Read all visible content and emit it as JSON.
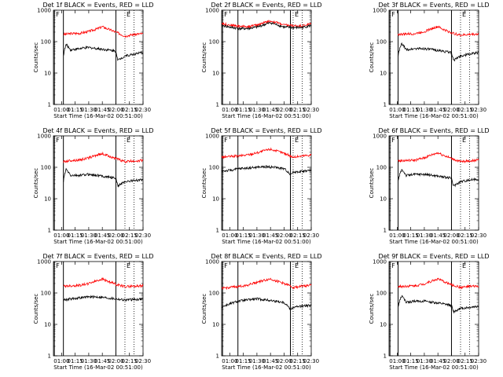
{
  "figure": {
    "x_unit_note": "x values are minutes after 01:00 on 16-Mar-02"
  },
  "chart_data": [
    {
      "type": "line",
      "title": "Det 1f BLACK = Events, RED = LLD",
      "xlabel": "Start Time (16-Mar-02 00:51:00)",
      "ylabel": "Counts/sec",
      "y_scale": "log",
      "ylim": [
        1,
        1000
      ],
      "xlim": [
        -9,
        90
      ],
      "x_tick_labels": [
        "01:00",
        "01:15",
        "01:30",
        "01:45",
        "02:00",
        "02:15",
        "02:30"
      ],
      "y_tick_labels": [
        "1",
        "10",
        "100",
        "1000"
      ],
      "markers": [
        {
          "label": "F",
          "x": -8,
          "style": "solid"
        },
        {
          "label": "",
          "x": 2,
          "style": "solid"
        },
        {
          "label": "",
          "x": 60,
          "style": "solid"
        },
        {
          "label": "E",
          "x": 70,
          "style": "dotted"
        },
        {
          "label": "",
          "x": 80,
          "style": "dotted"
        }
      ],
      "series": [
        {
          "color": "#ff0000",
          "x": [
            2,
            10,
            20,
            30,
            40,
            45,
            50,
            60,
            70,
            80,
            90
          ],
          "y": [
            170,
            180,
            185,
            210,
            260,
            300,
            260,
            200,
            150,
            170,
            180
          ]
        },
        {
          "color": "#000000",
          "x": [
            2,
            5,
            10,
            20,
            30,
            40,
            50,
            60,
            62,
            70,
            80,
            90
          ],
          "y": [
            35,
            80,
            55,
            60,
            65,
            60,
            55,
            50,
            25,
            35,
            40,
            45
          ]
        }
      ]
    },
    {
      "type": "line",
      "title": "Det 2f BLACK = Events, RED = LLD",
      "xlabel": "Start Time (16-Mar-02 00:51:00)",
      "ylabel": "Counts/sec",
      "y_scale": "log",
      "ylim": [
        1,
        1000
      ],
      "xlim": [
        -9,
        90
      ],
      "x_tick_labels": [
        "01:00",
        "01:15",
        "01:30",
        "01:45",
        "02:00",
        "02:15",
        "02:30"
      ],
      "y_tick_labels": [
        "1",
        "10",
        "100",
        "1000"
      ],
      "markers": [
        {
          "label": "F",
          "x": -8,
          "style": "solid"
        },
        {
          "label": "",
          "x": 9,
          "style": "solid"
        },
        {
          "label": "",
          "x": 67,
          "style": "solid"
        },
        {
          "label": "E",
          "x": 70,
          "style": "dotted"
        },
        {
          "label": "",
          "x": 80,
          "style": "dotted"
        }
      ],
      "series": [
        {
          "color": "#ff0000",
          "x": [
            -9,
            0,
            10,
            20,
            30,
            40,
            45,
            50,
            60,
            70,
            80,
            90
          ],
          "y": [
            380,
            340,
            310,
            300,
            340,
            420,
            450,
            420,
            340,
            320,
            320,
            370
          ]
        },
        {
          "color": "#000000",
          "x": [
            -9,
            0,
            10,
            20,
            30,
            40,
            45,
            50,
            60,
            70,
            80,
            90
          ],
          "y": [
            330,
            290,
            260,
            260,
            290,
            360,
            400,
            360,
            290,
            280,
            280,
            330
          ]
        }
      ]
    },
    {
      "type": "line",
      "title": "Det 3f BLACK = Events, RED = LLD",
      "xlabel": "Start Time (16-Mar-02 00:51:00)",
      "ylabel": "Counts/sec",
      "y_scale": "log",
      "ylim": [
        1,
        1000
      ],
      "xlim": [
        -9,
        90
      ],
      "x_tick_labels": [
        "01:00",
        "01:15",
        "01:30",
        "01:45",
        "02:00",
        "02:15",
        "02:30"
      ],
      "y_tick_labels": [
        "1",
        "10",
        "100",
        "1000"
      ],
      "markers": [
        {
          "label": "F",
          "x": -8,
          "style": "solid"
        },
        {
          "label": "",
          "x": 1,
          "style": "solid"
        },
        {
          "label": "",
          "x": 60,
          "style": "solid"
        },
        {
          "label": "E",
          "x": 70,
          "style": "dotted"
        },
        {
          "label": "",
          "x": 80,
          "style": "dotted"
        }
      ],
      "series": [
        {
          "color": "#ff0000",
          "x": [
            1,
            10,
            20,
            30,
            40,
            45,
            50,
            60,
            70,
            80,
            90
          ],
          "y": [
            170,
            175,
            180,
            210,
            270,
            300,
            250,
            190,
            160,
            170,
            175
          ]
        },
        {
          "color": "#000000",
          "x": [
            1,
            5,
            10,
            20,
            30,
            40,
            50,
            60,
            62,
            70,
            80,
            90
          ],
          "y": [
            35,
            85,
            55,
            60,
            60,
            55,
            50,
            45,
            25,
            35,
            40,
            45
          ]
        }
      ]
    },
    {
      "type": "line",
      "title": "Det 4f BLACK = Events, RED = LLD",
      "xlabel": "Start Time (16-Mar-02 00:51:00)",
      "ylabel": "Counts/sec",
      "y_scale": "log",
      "ylim": [
        1,
        1000
      ],
      "xlim": [
        -9,
        90
      ],
      "x_tick_labels": [
        "01:00",
        "01:15",
        "01:30",
        "01:45",
        "02:00",
        "02:15",
        "02:30"
      ],
      "y_tick_labels": [
        "1",
        "10",
        "100",
        "1000"
      ],
      "markers": [
        {
          "label": "F",
          "x": -8,
          "style": "solid"
        },
        {
          "label": "",
          "x": 2,
          "style": "solid"
        },
        {
          "label": "",
          "x": 60,
          "style": "solid"
        },
        {
          "label": "E",
          "x": 70,
          "style": "dotted"
        },
        {
          "label": "",
          "x": 80,
          "style": "dotted"
        }
      ],
      "series": [
        {
          "color": "#ff0000",
          "x": [
            2,
            10,
            20,
            30,
            40,
            45,
            50,
            60,
            70,
            80,
            90
          ],
          "y": [
            150,
            165,
            170,
            200,
            250,
            270,
            240,
            190,
            150,
            160,
            165
          ]
        },
        {
          "color": "#000000",
          "x": [
            2,
            5,
            10,
            20,
            30,
            40,
            50,
            60,
            62,
            70,
            80,
            90
          ],
          "y": [
            35,
            85,
            55,
            55,
            60,
            55,
            50,
            45,
            25,
            35,
            38,
            40
          ]
        }
      ]
    },
    {
      "type": "line",
      "title": "Det 5f BLACK = Events, RED = LLD",
      "xlabel": "Start Time (16-Mar-02 00:51:00)",
      "ylabel": "Counts/sec",
      "y_scale": "log",
      "ylim": [
        1,
        1000
      ],
      "xlim": [
        -9,
        90
      ],
      "x_tick_labels": [
        "01:00",
        "01:15",
        "01:30",
        "01:45",
        "02:00",
        "02:15",
        "02:30"
      ],
      "y_tick_labels": [
        "1",
        "10",
        "100",
        "1000"
      ],
      "markers": [
        {
          "label": "F",
          "x": -8,
          "style": "solid"
        },
        {
          "label": "",
          "x": 9,
          "style": "solid"
        },
        {
          "label": "",
          "x": 67,
          "style": "solid"
        },
        {
          "label": "E",
          "x": 70,
          "style": "dotted"
        },
        {
          "label": "",
          "x": 80,
          "style": "dotted"
        }
      ],
      "series": [
        {
          "color": "#ff0000",
          "x": [
            -9,
            0,
            10,
            20,
            30,
            40,
            45,
            50,
            60,
            70,
            80,
            90
          ],
          "y": [
            210,
            220,
            230,
            250,
            290,
            350,
            380,
            340,
            280,
            210,
            230,
            250
          ]
        },
        {
          "color": "#000000",
          "x": [
            -9,
            0,
            10,
            20,
            30,
            40,
            50,
            60,
            67,
            70,
            80,
            90
          ],
          "y": [
            75,
            80,
            90,
            95,
            100,
            105,
            100,
            90,
            60,
            70,
            75,
            80
          ]
        }
      ]
    },
    {
      "type": "line",
      "title": "Det 6f BLACK = Events, RED = LLD",
      "xlabel": "Start Time (16-Mar-02 00:51:00)",
      "ylabel": "Counts/sec",
      "y_scale": "log",
      "ylim": [
        1,
        1000
      ],
      "xlim": [
        -9,
        90
      ],
      "x_tick_labels": [
        "01:00",
        "01:15",
        "01:30",
        "01:45",
        "02:00",
        "02:15",
        "02:30"
      ],
      "y_tick_labels": [
        "1",
        "10",
        "100",
        "1000"
      ],
      "markers": [
        {
          "label": "F",
          "x": -8,
          "style": "solid"
        },
        {
          "label": "",
          "x": 1,
          "style": "solid"
        },
        {
          "label": "",
          "x": 60,
          "style": "solid"
        },
        {
          "label": "E",
          "x": 70,
          "style": "dotted"
        },
        {
          "label": "",
          "x": 80,
          "style": "dotted"
        }
      ],
      "series": [
        {
          "color": "#ff0000",
          "x": [
            1,
            10,
            20,
            30,
            40,
            45,
            50,
            60,
            70,
            80,
            90
          ],
          "y": [
            160,
            165,
            170,
            200,
            260,
            290,
            250,
            190,
            150,
            160,
            170
          ]
        },
        {
          "color": "#000000",
          "x": [
            1,
            5,
            10,
            20,
            30,
            40,
            50,
            60,
            62,
            70,
            80,
            90
          ],
          "y": [
            35,
            85,
            55,
            60,
            60,
            55,
            50,
            45,
            25,
            35,
            40,
            42
          ]
        }
      ]
    },
    {
      "type": "line",
      "title": "Det 7f BLACK = Events, RED = LLD",
      "xlabel": "Start Time (16-Mar-02 00:51:00)",
      "ylabel": "Counts/sec",
      "y_scale": "log",
      "ylim": [
        1,
        1000
      ],
      "xlim": [
        -9,
        90
      ],
      "x_tick_labels": [
        "01:00",
        "01:15",
        "01:30",
        "01:45",
        "02:00",
        "02:15",
        "02:30"
      ],
      "y_tick_labels": [
        "1",
        "10",
        "100",
        "1000"
      ],
      "markers": [
        {
          "label": "F",
          "x": -8,
          "style": "solid"
        },
        {
          "label": "",
          "x": 2,
          "style": "solid"
        },
        {
          "label": "",
          "x": 60,
          "style": "solid"
        },
        {
          "label": "E",
          "x": 70,
          "style": "dotted"
        },
        {
          "label": "",
          "x": 80,
          "style": "dotted"
        }
      ],
      "series": [
        {
          "color": "#ff0000",
          "x": [
            2,
            10,
            20,
            30,
            40,
            45,
            50,
            60,
            70,
            80,
            90
          ],
          "y": [
            165,
            170,
            175,
            200,
            250,
            280,
            240,
            190,
            160,
            165,
            170
          ]
        },
        {
          "color": "#000000",
          "x": [
            2,
            10,
            20,
            30,
            40,
            50,
            60,
            70,
            80,
            90
          ],
          "y": [
            60,
            65,
            70,
            75,
            75,
            70,
            65,
            60,
            62,
            65
          ]
        }
      ]
    },
    {
      "type": "line",
      "title": "Det 8f BLACK = Events, RED = LLD",
      "xlabel": "Start Time (16-Mar-02 00:51:00)",
      "ylabel": "Counts/sec",
      "y_scale": "log",
      "ylim": [
        1,
        1000
      ],
      "xlim": [
        -9,
        90
      ],
      "x_tick_labels": [
        "01:00",
        "01:15",
        "01:30",
        "01:45",
        "02:00",
        "02:15",
        "02:30"
      ],
      "y_tick_labels": [
        "1",
        "10",
        "100",
        "1000"
      ],
      "markers": [
        {
          "label": "F",
          "x": -8,
          "style": "solid"
        },
        {
          "label": "",
          "x": 9,
          "style": "solid"
        },
        {
          "label": "",
          "x": 67,
          "style": "solid"
        },
        {
          "label": "E",
          "x": 70,
          "style": "dotted"
        },
        {
          "label": "",
          "x": 80,
          "style": "dotted"
        }
      ],
      "series": [
        {
          "color": "#ff0000",
          "x": [
            -9,
            0,
            10,
            20,
            30,
            40,
            45,
            50,
            60,
            70,
            80,
            90
          ],
          "y": [
            140,
            150,
            160,
            180,
            220,
            260,
            280,
            250,
            200,
            150,
            165,
            175
          ]
        },
        {
          "color": "#000000",
          "x": [
            -9,
            0,
            10,
            20,
            30,
            40,
            50,
            60,
            67,
            70,
            80,
            90
          ],
          "y": [
            35,
            45,
            55,
            60,
            65,
            60,
            55,
            50,
            30,
            35,
            38,
            40
          ]
        }
      ]
    },
    {
      "type": "line",
      "title": "Det 9f BLACK = Events, RED = LLD",
      "xlabel": "Start Time (16-Mar-02 00:51:00)",
      "ylabel": "Counts/sec",
      "y_scale": "log",
      "ylim": [
        1,
        1000
      ],
      "xlim": [
        -9,
        90
      ],
      "x_tick_labels": [
        "01:00",
        "01:15",
        "01:30",
        "01:45",
        "02:00",
        "02:15",
        "02:30"
      ],
      "y_tick_labels": [
        "1",
        "10",
        "100",
        "1000"
      ],
      "markers": [
        {
          "label": "F",
          "x": -8,
          "style": "solid"
        },
        {
          "label": "",
          "x": 1,
          "style": "solid"
        },
        {
          "label": "",
          "x": 60,
          "style": "solid"
        },
        {
          "label": "E",
          "x": 70,
          "style": "dotted"
        },
        {
          "label": "",
          "x": 80,
          "style": "dotted"
        }
      ],
      "series": [
        {
          "color": "#ff0000",
          "x": [
            1,
            10,
            20,
            30,
            40,
            45,
            50,
            60,
            70,
            80,
            90
          ],
          "y": [
            160,
            165,
            170,
            195,
            250,
            280,
            240,
            180,
            150,
            160,
            165
          ]
        },
        {
          "color": "#000000",
          "x": [
            1,
            5,
            10,
            20,
            30,
            40,
            50,
            60,
            62,
            70,
            80,
            90
          ],
          "y": [
            35,
            80,
            50,
            55,
            55,
            50,
            45,
            40,
            25,
            32,
            35,
            38
          ]
        }
      ]
    }
  ]
}
